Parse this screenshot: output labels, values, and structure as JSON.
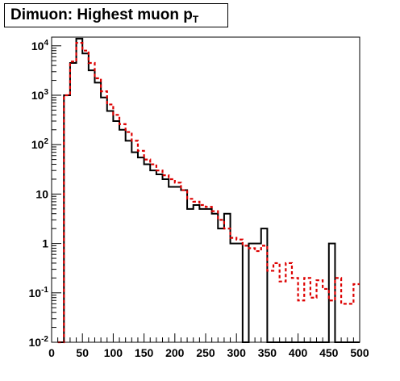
{
  "title": {
    "main": "Dimuon: Highest muon p",
    "sub": "T"
  },
  "chart_data": {
    "type": "histogram",
    "title": "Dimuon: Highest muon pT",
    "xlim": [
      0,
      500
    ],
    "ylim": [
      0.01,
      15000
    ],
    "yscale": "log",
    "bin_width": 10,
    "x_ticks": [
      {
        "value": 0,
        "label": "0"
      },
      {
        "value": 50,
        "label": "50"
      },
      {
        "value": 100,
        "label": "100"
      },
      {
        "value": 150,
        "label": "150"
      },
      {
        "value": 200,
        "label": "200"
      },
      {
        "value": 250,
        "label": "250"
      },
      {
        "value": 300,
        "label": "300"
      },
      {
        "value": 350,
        "label": "350"
      },
      {
        "value": 400,
        "label": "400"
      },
      {
        "value": 450,
        "label": "450"
      },
      {
        "value": 500,
        "label": "500"
      }
    ],
    "y_ticks": [
      {
        "value": 0.01,
        "base": "10",
        "exp": "-2"
      },
      {
        "value": 0.1,
        "base": "10",
        "exp": "-1"
      },
      {
        "value": 1,
        "base": "1",
        "exp": ""
      },
      {
        "value": 10,
        "base": "10",
        "exp": ""
      },
      {
        "value": 100,
        "base": "10",
        "exp": "2"
      },
      {
        "value": 1000,
        "base": "10",
        "exp": "3"
      },
      {
        "value": 10000,
        "base": "10",
        "exp": "4"
      }
    ],
    "series": [
      {
        "color": "#000000",
        "style": "solid",
        "x": [
          10,
          20,
          30,
          40,
          50,
          60,
          70,
          80,
          90,
          100,
          110,
          120,
          130,
          140,
          150,
          160,
          170,
          180,
          190,
          200,
          210,
          220,
          230,
          240,
          250,
          260,
          270,
          280,
          290,
          300,
          310,
          320,
          330,
          340,
          350,
          360,
          370,
          380,
          390,
          400,
          410,
          420,
          430,
          440,
          450,
          460,
          470,
          480,
          490
        ],
        "values": [
          0.01,
          1000,
          4500,
          14000,
          7000,
          3200,
          1800,
          900,
          480,
          300,
          200,
          120,
          70,
          55,
          40,
          30,
          25,
          20,
          14,
          14,
          12,
          5,
          6,
          5,
          5,
          4,
          2,
          4,
          1,
          1,
          0.01,
          1,
          1,
          2,
          0.01,
          0.01,
          0.01,
          0.01,
          0.01,
          0.01,
          0.01,
          0.01,
          0.01,
          0.01,
          1,
          0.01,
          0.01,
          0.01,
          0.01
        ]
      },
      {
        "color": "#dd0000",
        "style": "dashed",
        "x": [
          10,
          20,
          30,
          40,
          50,
          60,
          70,
          80,
          90,
          100,
          110,
          120,
          130,
          140,
          150,
          160,
          170,
          180,
          190,
          200,
          210,
          220,
          230,
          240,
          250,
          260,
          270,
          280,
          290,
          300,
          310,
          320,
          330,
          340,
          350,
          360,
          370,
          380,
          390,
          400,
          410,
          420,
          430,
          440,
          450,
          460,
          470,
          480,
          490
        ],
        "values": [
          0.01,
          1000,
          4800,
          11500,
          8000,
          4500,
          2200,
          1200,
          650,
          400,
          260,
          180,
          120,
          75,
          50,
          40,
          30,
          24,
          20,
          17,
          12,
          8,
          7,
          6,
          5.5,
          4.5,
          3,
          2,
          1.3,
          1.2,
          0.9,
          0.8,
          0.7,
          0.9,
          0.28,
          0.4,
          0.17,
          0.4,
          0.2,
          0.07,
          0.2,
          0.08,
          0.18,
          0.12,
          0.07,
          0.2,
          0.06,
          0.06,
          0.15
        ]
      }
    ]
  }
}
